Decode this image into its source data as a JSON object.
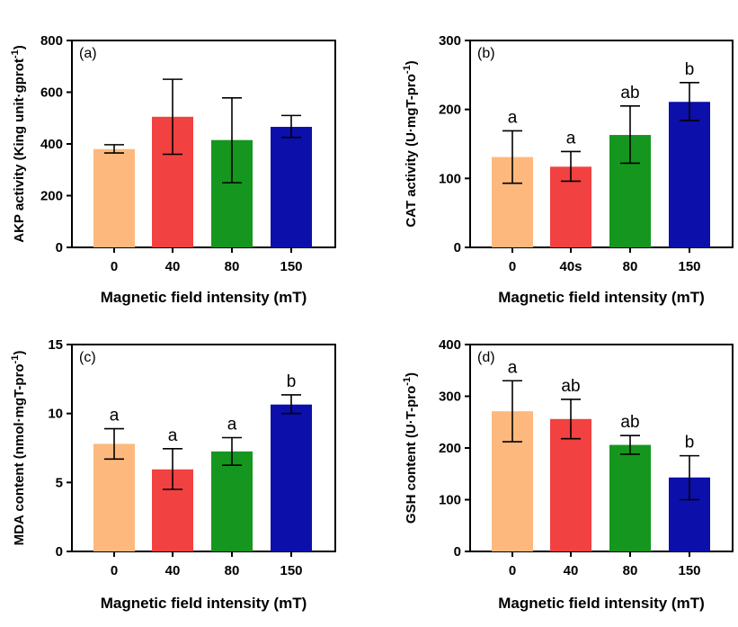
{
  "colors": [
    "#FDB97D",
    "#F14141",
    "#15961E",
    "#0C0FAA"
  ],
  "chart_data": [
    {
      "type": "bar",
      "panel": "(a)",
      "categories": [
        "0",
        "40",
        "80",
        "150"
      ],
      "values": [
        380,
        505,
        415,
        466
      ],
      "errors": [
        [
          365,
          397
        ],
        [
          360,
          650
        ],
        [
          250,
          578
        ],
        [
          425,
          510
        ]
      ],
      "letters": [
        "",
        "",
        "",
        ""
      ],
      "xlabel": "Magnetic field intensity (mT)",
      "ylabel": "AKP activity (King unit·gprot",
      "ylabel_sup": "-1",
      "ylabel_end": ")",
      "ylim": [
        0,
        800
      ],
      "yticks": [
        0,
        200,
        400,
        600,
        800
      ]
    },
    {
      "type": "bar",
      "panel": "(b)",
      "categories": [
        "0",
        "40s",
        "80",
        "150"
      ],
      "values": [
        131,
        117,
        163,
        211
      ],
      "errors": [
        [
          93,
          169
        ],
        [
          96,
          139
        ],
        [
          122,
          205
        ],
        [
          184,
          239
        ]
      ],
      "letters": [
        "a",
        "a",
        "ab",
        "b"
      ],
      "xlabel": "Magnetic field intensity (mT)",
      "ylabel": "CAT activity (U·mgT-pro",
      "ylabel_sup": "-1",
      "ylabel_end": ")",
      "ylim": [
        0,
        300
      ],
      "yticks": [
        0,
        100,
        200,
        300
      ]
    },
    {
      "type": "bar",
      "panel": "(c)",
      "categories": [
        "0",
        "40",
        "80",
        "150"
      ],
      "values": [
        7.8,
        5.95,
        7.25,
        10.65
      ],
      "errors": [
        [
          6.7,
          8.9
        ],
        [
          4.5,
          7.45
        ],
        [
          6.25,
          8.25
        ],
        [
          10.0,
          11.35
        ]
      ],
      "letters": [
        "a",
        "a",
        "a",
        "b"
      ],
      "xlabel": "Magnetic field intensity (mT)",
      "ylabel": "MDA content (nmol·mgT-pro",
      "ylabel_sup": "-1",
      "ylabel_end": ")",
      "ylim": [
        0,
        15
      ],
      "yticks": [
        0,
        5,
        10,
        15
      ]
    },
    {
      "type": "bar",
      "panel": "(d)",
      "categories": [
        "0",
        "40",
        "80",
        "150"
      ],
      "values": [
        271,
        256,
        206,
        143
      ],
      "errors": [
        [
          212,
          330
        ],
        [
          218,
          294
        ],
        [
          188,
          224
        ],
        [
          100,
          185
        ]
      ],
      "letters": [
        "a",
        "ab",
        "ab",
        "b"
      ],
      "xlabel": "Magnetic field intensity (mT)",
      "ylabel": "GSH content (U·T-pro",
      "ylabel_sup": "-1",
      "ylabel_end": ")",
      "ylim": [
        0,
        400
      ],
      "yticks": [
        0,
        100,
        200,
        300,
        400
      ]
    }
  ]
}
